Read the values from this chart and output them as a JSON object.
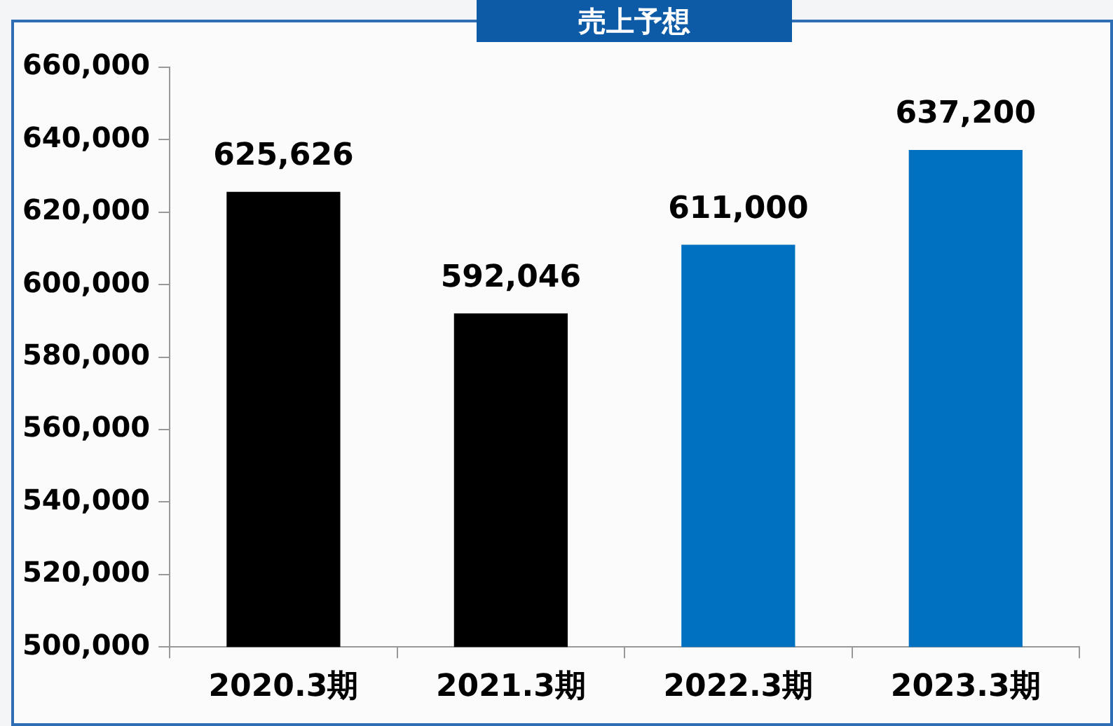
{
  "chart_data": {
    "type": "bar",
    "title": "売上予想",
    "categories": [
      "2020.3期",
      "2021.3期",
      "2022.3期",
      "2023.3期"
    ],
    "values": [
      625626,
      592046,
      611000,
      637200
    ],
    "value_labels": [
      "625,626",
      "592,046",
      "611,000",
      "637,200"
    ],
    "colors": [
      "#000000",
      "#000000",
      "#0070c0",
      "#0070c0"
    ],
    "ylim": [
      500000,
      660000
    ],
    "yticks": [
      {
        "value": 500000,
        "label": "500,000"
      },
      {
        "value": 520000,
        "label": "520,000"
      },
      {
        "value": 540000,
        "label": "540,000"
      },
      {
        "value": 560000,
        "label": "560,000"
      },
      {
        "value": 580000,
        "label": "580,000"
      },
      {
        "value": 600000,
        "label": "600,000"
      },
      {
        "value": 620000,
        "label": "620,000"
      },
      {
        "value": 640000,
        "label": "640,000"
      },
      {
        "value": 660000,
        "label": "660,000"
      }
    ],
    "grid": false,
    "legend": false
  }
}
